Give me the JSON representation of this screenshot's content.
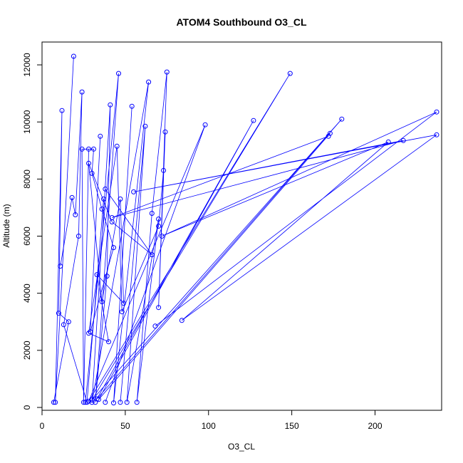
{
  "chart_data": {
    "type": "line",
    "title": "ATOM4 Southbound O3_CL",
    "xlabel": "O3_CL",
    "ylabel": "Altitude (m)",
    "xlim": [
      0,
      240
    ],
    "ylim": [
      -100,
      12800
    ],
    "x_ticks": [
      0,
      50,
      100,
      150,
      200
    ],
    "y_ticks": [
      0,
      2000,
      4000,
      6000,
      8000,
      10000,
      12000
    ],
    "grid": false,
    "marker": "open-circle",
    "color": "#0000ff",
    "series": [
      {
        "points": [
          [
            19,
            12300
          ],
          [
            8,
            180
          ],
          [
            12,
            10400
          ],
          [
            10,
            3300
          ],
          [
            16,
            3000
          ],
          [
            7,
            180
          ]
        ]
      },
      {
        "points": [
          [
            11,
            4950
          ],
          [
            18,
            7350
          ],
          [
            20,
            6750
          ],
          [
            24,
            11050
          ],
          [
            22,
            6000
          ],
          [
            13,
            2900
          ],
          [
            27,
            180
          ],
          [
            37,
            7300
          ]
        ]
      },
      {
        "points": [
          [
            28,
            9050
          ],
          [
            25,
            180
          ],
          [
            24,
            9050
          ],
          [
            31,
            9050
          ],
          [
            30,
            8200
          ],
          [
            36,
            6950
          ],
          [
            43,
            5600
          ],
          [
            29,
            2650
          ],
          [
            35,
            9500
          ]
        ]
      },
      {
        "points": [
          [
            26,
            180
          ],
          [
            46,
            11700
          ],
          [
            32,
            180
          ],
          [
            39,
            4600
          ],
          [
            41,
            10600
          ],
          [
            30,
            180
          ],
          [
            64,
            11400
          ],
          [
            43,
            160
          ],
          [
            54,
            10550
          ]
        ]
      },
      {
        "points": [
          [
            47,
            180
          ],
          [
            62,
            9850
          ],
          [
            51,
            180
          ],
          [
            70,
            6600
          ],
          [
            57,
            180
          ],
          [
            66,
            6800
          ],
          [
            75,
            11750
          ],
          [
            70,
            3500
          ],
          [
            74,
            9650
          ]
        ]
      },
      {
        "points": [
          [
            38,
            180
          ],
          [
            98,
            9900
          ],
          [
            28,
            220
          ],
          [
            149,
            11700
          ],
          [
            30,
            260
          ],
          [
            180,
            10100
          ],
          [
            33,
            300
          ],
          [
            127,
            10050
          ],
          [
            34,
            280
          ],
          [
            173,
            9600
          ]
        ]
      },
      {
        "points": [
          [
            68,
            2850
          ],
          [
            237,
            10350
          ],
          [
            72,
            6000
          ],
          [
            208,
            9300
          ],
          [
            84,
            3050
          ],
          [
            237,
            9550
          ],
          [
            55,
            7550
          ],
          [
            217,
            9350
          ],
          [
            42,
            6650
          ],
          [
            172,
            9500
          ]
        ]
      },
      {
        "points": [
          [
            38,
            7650
          ],
          [
            66,
            5350
          ],
          [
            42,
            6500
          ],
          [
            28,
            8550
          ],
          [
            36,
            3700
          ],
          [
            47,
            7300
          ],
          [
            49,
            3650
          ],
          [
            33,
            4650
          ],
          [
            40,
            2300
          ],
          [
            28,
            2600
          ],
          [
            45,
            9150
          ],
          [
            48,
            3350
          ],
          [
            70,
            6350
          ],
          [
            73,
            8300
          ]
        ]
      }
    ]
  }
}
